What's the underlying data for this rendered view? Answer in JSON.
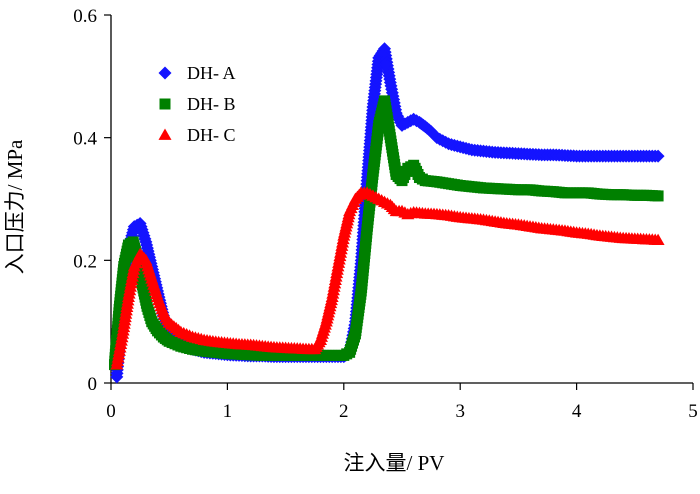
{
  "chart_data": {
    "type": "scatter",
    "title": "",
    "xlabel": "注入量/ PV",
    "ylabel": "入口压力/ MPa",
    "xlim": [
      0,
      5
    ],
    "ylim": [
      0,
      0.6
    ],
    "xticks": [
      0,
      1,
      2,
      3,
      4,
      5
    ],
    "xtick_labels": [
      "0",
      "1",
      "2",
      "3",
      "4",
      "5"
    ],
    "yticks": [
      0,
      0.2,
      0.4,
      0.6
    ],
    "ytick_labels": [
      "0",
      "0.2",
      "0.4",
      "0.6"
    ],
    "grid": false,
    "legend_position": "top-left",
    "series": [
      {
        "name": "DH- A",
        "marker": "diamond",
        "color": "#1414ff",
        "x": [
          0.05,
          0.1,
          0.15,
          0.2,
          0.25,
          0.3,
          0.35,
          0.4,
          0.45,
          0.5,
          0.6,
          0.7,
          0.8,
          0.9,
          1.0,
          1.1,
          1.2,
          1.3,
          1.4,
          1.5,
          1.6,
          1.7,
          1.8,
          1.9,
          2.0,
          2.05,
          2.1,
          2.15,
          2.2,
          2.25,
          2.3,
          2.35,
          2.4,
          2.45,
          2.5,
          2.55,
          2.6,
          2.65,
          2.7,
          2.75,
          2.8,
          2.9,
          3.0,
          3.1,
          3.2,
          3.3,
          3.4,
          3.5,
          3.6,
          3.7,
          3.8,
          3.9,
          4.0,
          4.1,
          4.2,
          4.3,
          4.4,
          4.5,
          4.6,
          4.7
        ],
        "y": [
          0.01,
          0.14,
          0.22,
          0.255,
          0.26,
          0.23,
          0.19,
          0.15,
          0.11,
          0.085,
          0.065,
          0.055,
          0.05,
          0.048,
          0.046,
          0.045,
          0.044,
          0.044,
          0.043,
          0.043,
          0.043,
          0.043,
          0.043,
          0.043,
          0.043,
          0.05,
          0.1,
          0.2,
          0.33,
          0.45,
          0.53,
          0.545,
          0.49,
          0.44,
          0.42,
          0.425,
          0.43,
          0.425,
          0.418,
          0.41,
          0.4,
          0.39,
          0.385,
          0.38,
          0.378,
          0.376,
          0.375,
          0.374,
          0.373,
          0.372,
          0.372,
          0.371,
          0.37,
          0.37,
          0.37,
          0.37,
          0.37,
          0.37,
          0.37,
          0.37
        ]
      },
      {
        "name": "DH- B",
        "marker": "square",
        "color": "#008000",
        "x": [
          0.03,
          0.07,
          0.11,
          0.15,
          0.19,
          0.23,
          0.27,
          0.31,
          0.35,
          0.4,
          0.45,
          0.5,
          0.6,
          0.7,
          0.8,
          0.9,
          1.0,
          1.1,
          1.2,
          1.3,
          1.4,
          1.5,
          1.6,
          1.7,
          1.8,
          1.9,
          2.0,
          2.05,
          2.1,
          2.15,
          2.2,
          2.25,
          2.3,
          2.35,
          2.4,
          2.45,
          2.5,
          2.55,
          2.6,
          2.65,
          2.7,
          2.8,
          2.9,
          3.0,
          3.1,
          3.2,
          3.3,
          3.4,
          3.5,
          3.6,
          3.7,
          3.8,
          3.9,
          4.0,
          4.1,
          4.2,
          4.3,
          4.4,
          4.5,
          4.6,
          4.7
        ],
        "y": [
          0.03,
          0.12,
          0.19,
          0.225,
          0.23,
          0.2,
          0.16,
          0.125,
          0.1,
          0.085,
          0.075,
          0.068,
          0.06,
          0.055,
          0.052,
          0.05,
          0.048,
          0.047,
          0.046,
          0.045,
          0.045,
          0.045,
          0.045,
          0.045,
          0.045,
          0.045,
          0.045,
          0.05,
          0.08,
          0.15,
          0.25,
          0.34,
          0.42,
          0.46,
          0.4,
          0.34,
          0.33,
          0.35,
          0.355,
          0.335,
          0.33,
          0.328,
          0.325,
          0.322,
          0.32,
          0.318,
          0.317,
          0.316,
          0.315,
          0.315,
          0.313,
          0.312,
          0.31,
          0.31,
          0.31,
          0.308,
          0.307,
          0.307,
          0.306,
          0.306,
          0.305
        ]
      },
      {
        "name": "DH- C",
        "marker": "triangle",
        "color": "#ff0000",
        "x": [
          0.05,
          0.1,
          0.15,
          0.2,
          0.25,
          0.3,
          0.35,
          0.4,
          0.45,
          0.5,
          0.6,
          0.7,
          0.8,
          0.9,
          1.0,
          1.1,
          1.2,
          1.3,
          1.4,
          1.5,
          1.6,
          1.7,
          1.75,
          1.8,
          1.85,
          1.9,
          1.95,
          2.0,
          2.05,
          2.1,
          2.15,
          2.2,
          2.25,
          2.3,
          2.35,
          2.4,
          2.45,
          2.5,
          2.55,
          2.6,
          2.7,
          2.8,
          2.9,
          3.0,
          3.1,
          3.2,
          3.3,
          3.4,
          3.5,
          3.6,
          3.7,
          3.8,
          3.9,
          4.0,
          4.1,
          4.2,
          4.3,
          4.4,
          4.5,
          4.6,
          4.7
        ],
        "y": [
          0.03,
          0.08,
          0.14,
          0.19,
          0.21,
          0.2,
          0.17,
          0.14,
          0.115,
          0.098,
          0.083,
          0.075,
          0.07,
          0.067,
          0.065,
          0.063,
          0.062,
          0.06,
          0.058,
          0.057,
          0.056,
          0.055,
          0.055,
          0.07,
          0.1,
          0.14,
          0.19,
          0.24,
          0.28,
          0.3,
          0.31,
          0.31,
          0.305,
          0.3,
          0.295,
          0.29,
          0.28,
          0.28,
          0.275,
          0.278,
          0.276,
          0.275,
          0.273,
          0.27,
          0.268,
          0.266,
          0.263,
          0.26,
          0.258,
          0.255,
          0.252,
          0.25,
          0.248,
          0.245,
          0.243,
          0.24,
          0.238,
          0.236,
          0.235,
          0.234,
          0.233
        ]
      }
    ]
  }
}
